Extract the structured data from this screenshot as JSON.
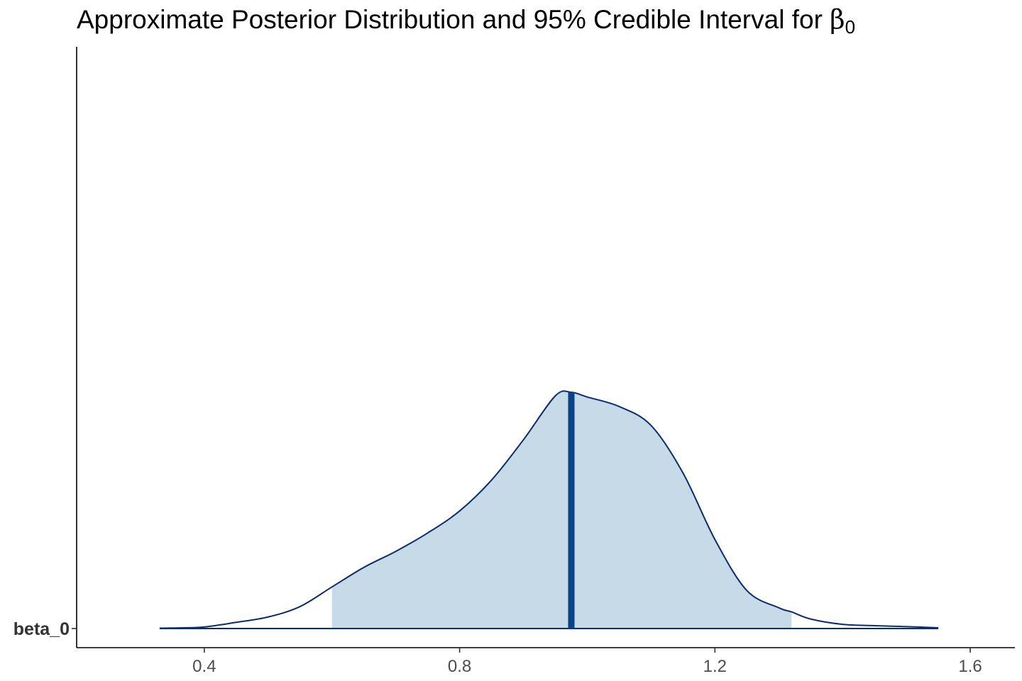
{
  "chart_data": {
    "type": "area",
    "title": "Approximate Posterior Distribution and 95% Credible Interval for",
    "title_symbol": "β",
    "title_subscript": "0",
    "xlabel": "",
    "ylabel": "",
    "y_category": "beta_0",
    "xlim": [
      0.2,
      1.67
    ],
    "x_ticks": [
      0.4,
      0.8,
      1.2,
      1.6
    ],
    "x_tick_labels": [
      "0.4",
      "0.8",
      "1.2",
      "1.6"
    ],
    "grid": false,
    "legend": "none",
    "point_estimate": 0.975,
    "credible_interval": [
      0.6,
      1.32
    ],
    "density": {
      "x": [
        0.33,
        0.36,
        0.4,
        0.45,
        0.5,
        0.55,
        0.6,
        0.65,
        0.7,
        0.75,
        0.8,
        0.85,
        0.9,
        0.95,
        0.975,
        1.0,
        1.05,
        1.1,
        1.15,
        1.2,
        1.25,
        1.3,
        1.32,
        1.35,
        1.4,
        1.45,
        1.5,
        1.55
      ],
      "y": [
        0.003,
        0.005,
        0.013,
        0.052,
        0.097,
        0.185,
        0.35,
        0.515,
        0.65,
        0.805,
        0.99,
        1.25,
        1.59,
        1.96,
        1.99,
        1.95,
        1.87,
        1.71,
        1.31,
        0.75,
        0.32,
        0.175,
        0.14,
        0.08,
        0.035,
        0.024,
        0.016,
        0.006
      ],
      "y_max": 4.9
    },
    "colors": {
      "fill": "#c6dae8",
      "line": "#0b2d6b",
      "point_line": "#0a4487",
      "axis": "#000000"
    }
  }
}
